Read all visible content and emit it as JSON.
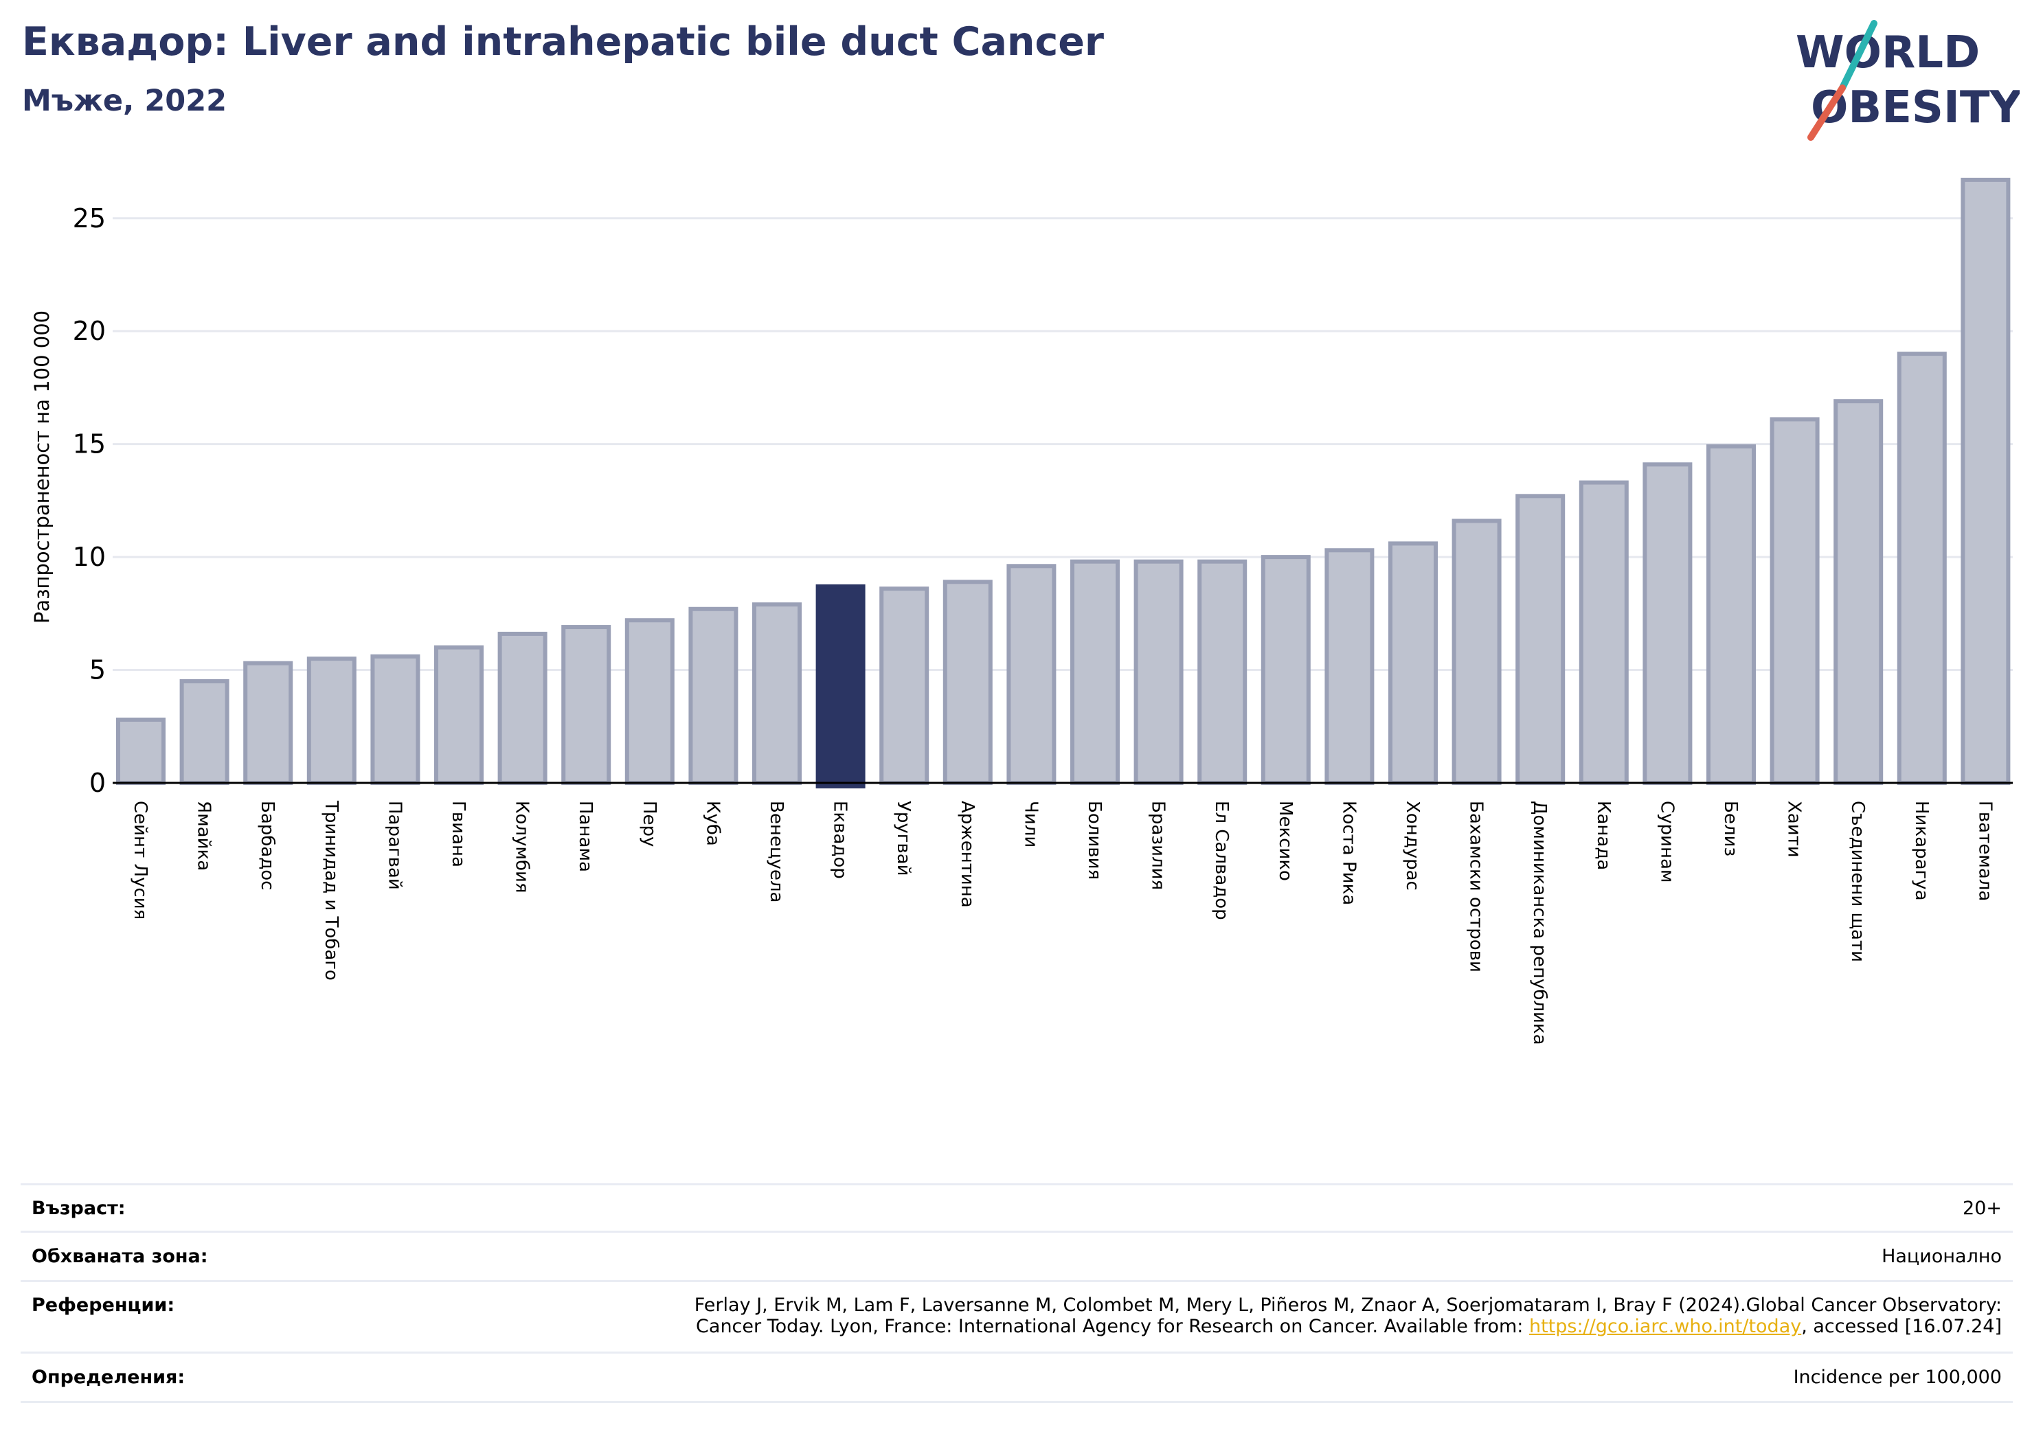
{
  "header": {
    "title": "Еквадор: Liver and intrahepatic bile duct Cancer",
    "subtitle": "Мъже, 2022"
  },
  "logo": {
    "line1": "WORLD",
    "line2": "OBESITY",
    "text_color": "#2b3563",
    "slash_top_color": "#2ab3b1",
    "slash_bottom_color": "#e2604b"
  },
  "chart_data": {
    "type": "bar",
    "title": "Еквадор: Liver and intrahepatic bile duct Cancer",
    "subtitle": "Мъже, 2022",
    "ylabel": "Разпространеност  на 100 000",
    "xlabel": "",
    "ylim": [
      0,
      27
    ],
    "yticks": [
      0,
      5,
      10,
      15,
      20,
      25
    ],
    "grid": true,
    "highlight": "Еквадор",
    "colors": {
      "bar": "#bec2cf",
      "bar_edge": "#9aa0b6",
      "highlight": "#2b3563",
      "grid": "#e6e8ef"
    },
    "categories": [
      "Сейнт Лусия",
      "Ямайка",
      "Барбадос",
      "Тринидад и Тобаго",
      "Парагвай",
      "Гвиана",
      "Колумбия",
      "Панама",
      "Перу",
      "Куба",
      "Венецуела",
      "Еквадор",
      "Уругвай",
      "Аржентина",
      "Чили",
      "Боливия",
      "Бразилия",
      "Ел Салвадор",
      "Мексико",
      "Коста Рика",
      "Хондурас",
      "Бахамски острови",
      "Доминиканска република",
      "Канада",
      "Суринам",
      "Белиз",
      "Хаити",
      "Съединени щати",
      "Никарагуа",
      "Гватемала"
    ],
    "values": [
      2.8,
      4.5,
      5.3,
      5.5,
      5.6,
      6.0,
      6.6,
      6.9,
      7.2,
      7.7,
      7.9,
      8.7,
      8.6,
      8.9,
      9.6,
      9.8,
      9.8,
      9.8,
      10.0,
      10.3,
      10.6,
      11.6,
      12.7,
      13.3,
      14.1,
      14.9,
      16.1,
      16.9,
      19.0,
      26.7
    ]
  },
  "meta": {
    "age_label": "Възраст:",
    "age_value": "20+",
    "area_label": "Обхваната зона:",
    "area_value": "Национално",
    "refs_label": "Референции:",
    "refs_line1": "Ferlay J, Ervik M, Lam F, Laversanne M, Colombet M, Mery L, Piñeros M, Znaor A, Soerjomataram I, Bray F (2024).Global Cancer Observatory:",
    "refs_line2_prefix": "Cancer Today. Lyon, France: International Agency for Research on Cancer. Available from: ",
    "refs_link": "https://gco.iarc.who.int/today",
    "refs_line2_suffix": ", accessed [16.07.24]",
    "defs_label": "Определения:",
    "defs_value": "Incidence per 100,000"
  }
}
